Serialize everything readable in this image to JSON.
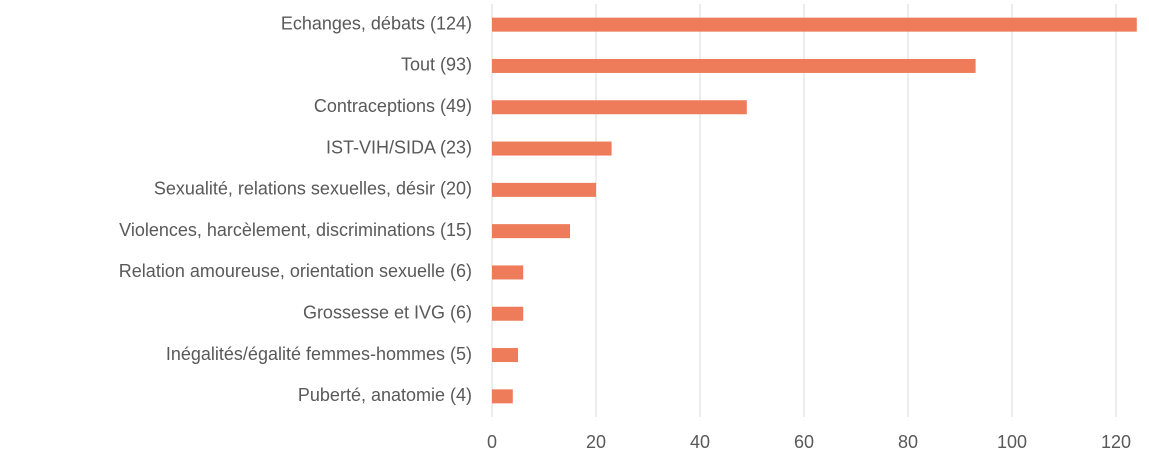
{
  "chart_data": {
    "type": "bar",
    "orientation": "horizontal",
    "categories": [
      "Echanges, débats (124)",
      "Tout (93)",
      "Contraceptions (49)",
      "IST-VIH/SIDA (23)",
      "Sexualité, relations sexuelles, désir (20)",
      "Violences, harcèlement, discriminations (15)",
      "Relation amoureuse, orientation sexuelle (6)",
      "Grossesse et IVG (6)",
      "Inégalités/égalité femmes-hommes (5)",
      "Puberté, anatomie (4)"
    ],
    "values": [
      124,
      93,
      49,
      23,
      20,
      15,
      6,
      6,
      5,
      4
    ],
    "color": "#ee7b5a",
    "xlim": [
      0,
      125
    ],
    "xticks": [
      0,
      20,
      40,
      60,
      80,
      100,
      120
    ],
    "grid": true
  }
}
